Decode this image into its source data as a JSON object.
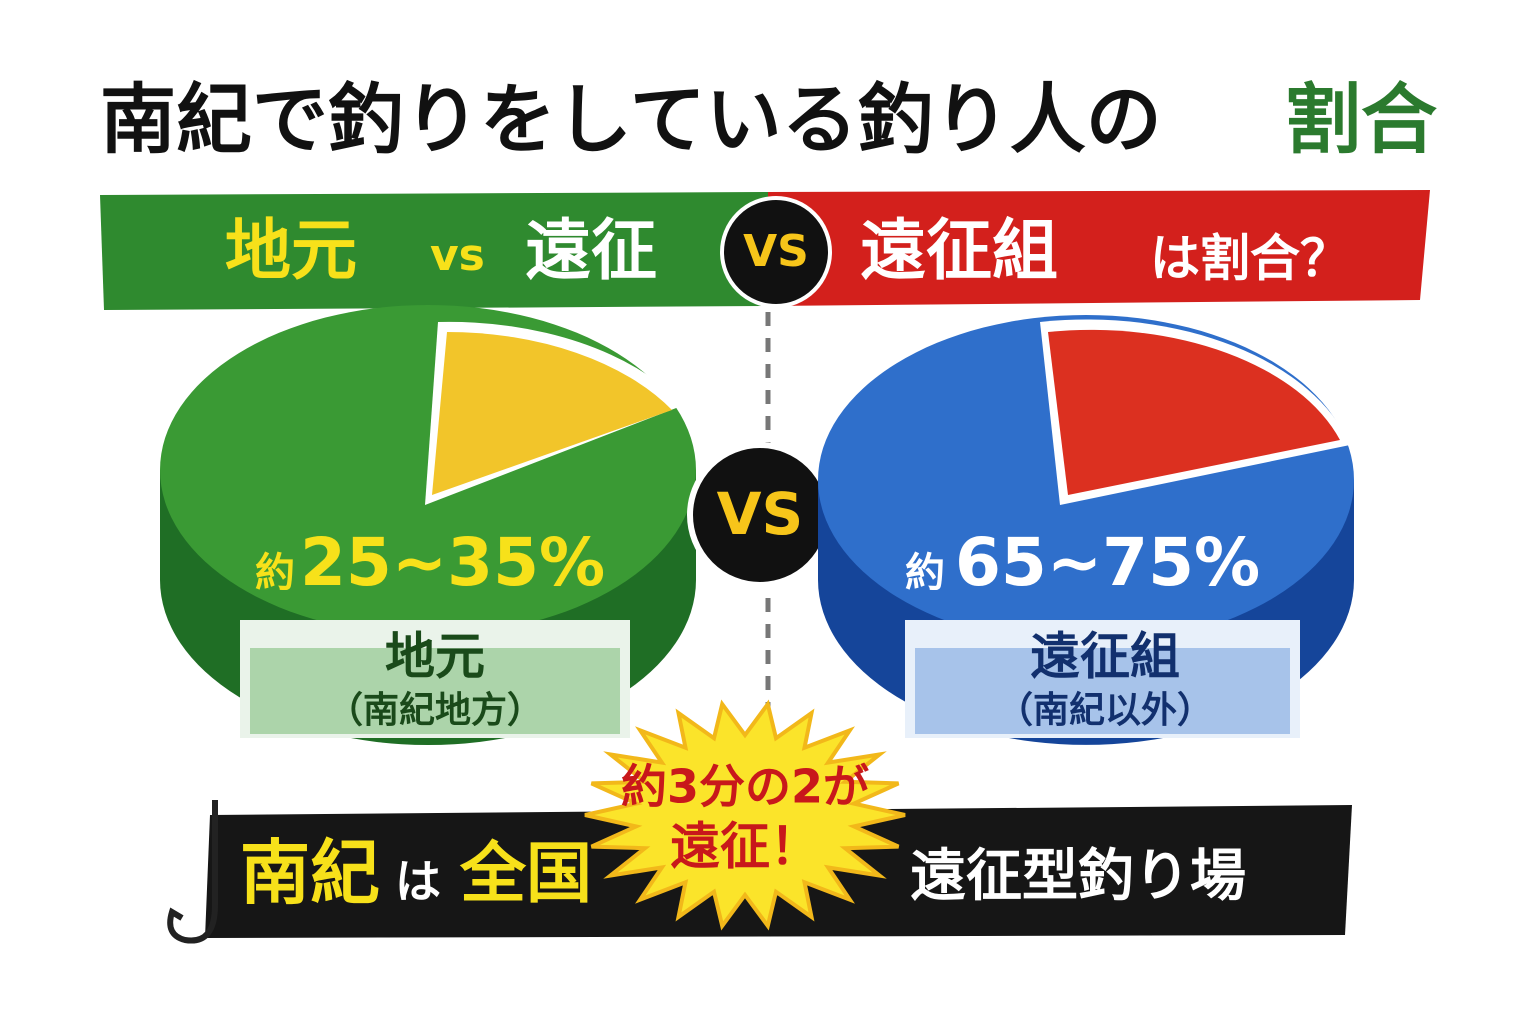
{
  "title": {
    "main": "南紀で釣りをしている釣り人の",
    "highlight": "割合"
  },
  "banner": {
    "local": "地元",
    "vs_small": "vs",
    "away": "遠征",
    "vs_badge": "VS",
    "away_group": "遠征組",
    "question": "は割合？"
  },
  "left_pie": {
    "approx": "約",
    "range": "25~35%",
    "name": "地元",
    "sub": "（南紀地方）"
  },
  "center_vs": "VS",
  "right_pie": {
    "approx": "約",
    "range": "65~75%",
    "name": "遠征組",
    "sub": "（南紀以外）"
  },
  "burst": {
    "line1": "約3分の2が",
    "line2": "遠征！"
  },
  "footer": {
    "nanki": "南紀",
    "wa": "は",
    "zenkoku": "全国",
    "rest": "遠征型釣り場"
  }
}
